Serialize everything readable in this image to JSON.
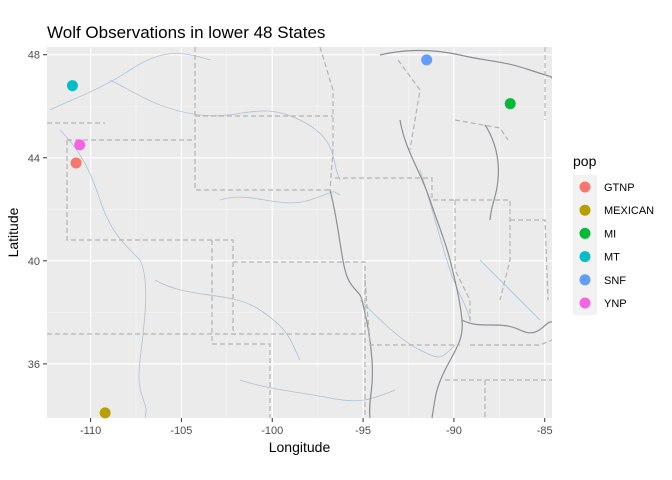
{
  "chart_data": {
    "type": "scatter",
    "title": "Wolf Observations in lower 48 States",
    "xlabel": "Longitude",
    "ylabel": "Latitude",
    "xlim": [
      -112.4,
      -84.6
    ],
    "ylim": [
      33.9,
      48.3
    ],
    "x_ticks": [
      -110,
      -105,
      -100,
      -95,
      -90,
      -85
    ],
    "y_ticks": [
      36,
      40,
      44,
      48
    ],
    "grid": true,
    "legend": {
      "title": "pop",
      "placement": "right"
    },
    "series": [
      {
        "name": "GTNP",
        "color": "#F8766D",
        "points": [
          {
            "x": -110.8,
            "y": 43.8
          }
        ]
      },
      {
        "name": "MEXICAN",
        "color": "#B79F00",
        "points": [
          {
            "x": -109.2,
            "y": 34.1
          }
        ]
      },
      {
        "name": "MI",
        "color": "#00BA38",
        "points": [
          {
            "x": -86.9,
            "y": 46.1
          }
        ]
      },
      {
        "name": "MT",
        "color": "#00BFC4",
        "points": [
          {
            "x": -111.0,
            "y": 46.8
          }
        ]
      },
      {
        "name": "SNF",
        "color": "#619CFF",
        "points": [
          {
            "x": -91.5,
            "y": 47.8
          }
        ]
      },
      {
        "name": "YNP",
        "color": "#F564E3",
        "points": [
          {
            "x": -110.6,
            "y": 44.5
          }
        ]
      }
    ]
  }
}
